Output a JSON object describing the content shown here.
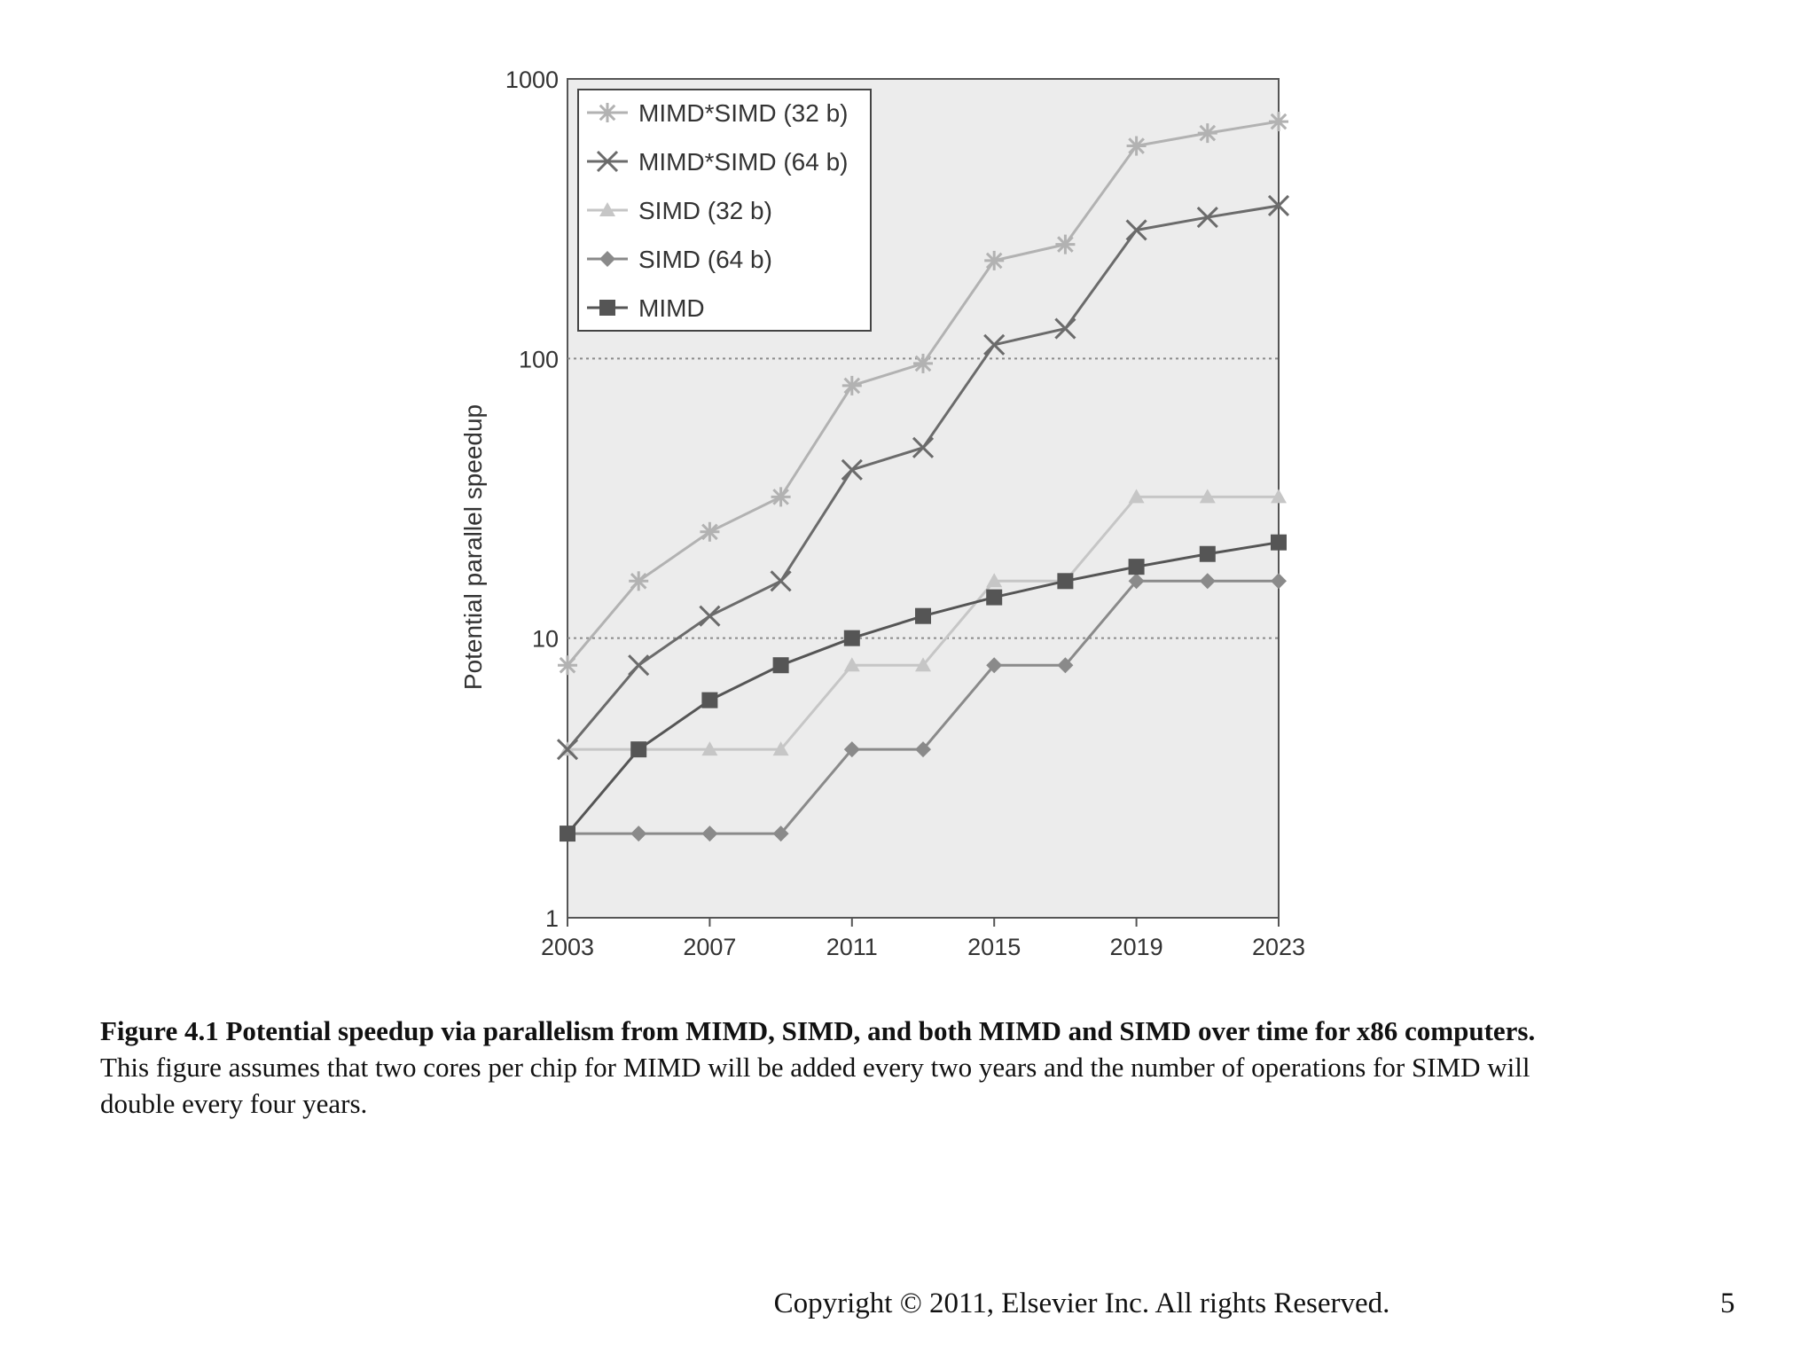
{
  "chart_data": {
    "type": "line",
    "xlabel": "",
    "ylabel": "Potential parallel speedup",
    "y_scale": "log",
    "ylim": [
      1,
      1000
    ],
    "xlim": [
      2003,
      2023
    ],
    "y_ticks": [
      1,
      10,
      100,
      1000
    ],
    "y_tick_labels": [
      "1",
      "10",
      "100",
      "1000"
    ],
    "x_ticks": [
      2003,
      2007,
      2011,
      2015,
      2019,
      2023
    ],
    "x_tick_labels": [
      "2003",
      "2007",
      "2011",
      "2015",
      "2019",
      "2023"
    ],
    "gridlines_y": [
      10,
      100
    ],
    "legend_position": "top-left",
    "background": "#ececec",
    "x": [
      2003,
      2005,
      2007,
      2009,
      2011,
      2013,
      2015,
      2017,
      2019,
      2021,
      2023
    ],
    "series": [
      {
        "name": "MIMD*SIMD (32 b)",
        "marker": "asterisk",
        "color": "#b2b2b2",
        "values": [
          8,
          16,
          24,
          32,
          80,
          96,
          224,
          256,
          576,
          640,
          704
        ]
      },
      {
        "name": "MIMD*SIMD (64 b)",
        "marker": "x",
        "color": "#6b6b6b",
        "values": [
          4,
          8,
          12,
          16,
          40,
          48,
          112,
          128,
          288,
          320,
          352
        ]
      },
      {
        "name": "SIMD (32 b)",
        "marker": "triangle",
        "color": "#c6c6c6",
        "values": [
          4,
          4,
          4,
          4,
          8,
          8,
          16,
          16,
          32,
          32,
          32
        ]
      },
      {
        "name": "SIMD (64 b)",
        "marker": "diamond",
        "color": "#8a8a8a",
        "values": [
          2,
          2,
          2,
          2,
          4,
          4,
          8,
          8,
          16,
          16,
          16
        ]
      },
      {
        "name": "MIMD",
        "marker": "square",
        "color": "#555555",
        "values": [
          2,
          4,
          6,
          8,
          10,
          12,
          14,
          16,
          18,
          20,
          22
        ]
      }
    ]
  },
  "caption": {
    "bold": "Figure 4.1 Potential speedup via parallelism from MIMD, SIMD, and both MIMD and SIMD over time for x86 computers.",
    "text": " This figure assumes that two cores per chip for MIMD will be added every two years and the number of operations for SIMD will double every four years."
  },
  "footer": {
    "copyright": "Copyright © 2011, Elsevier Inc. All rights Reserved.",
    "page_number": "5"
  }
}
